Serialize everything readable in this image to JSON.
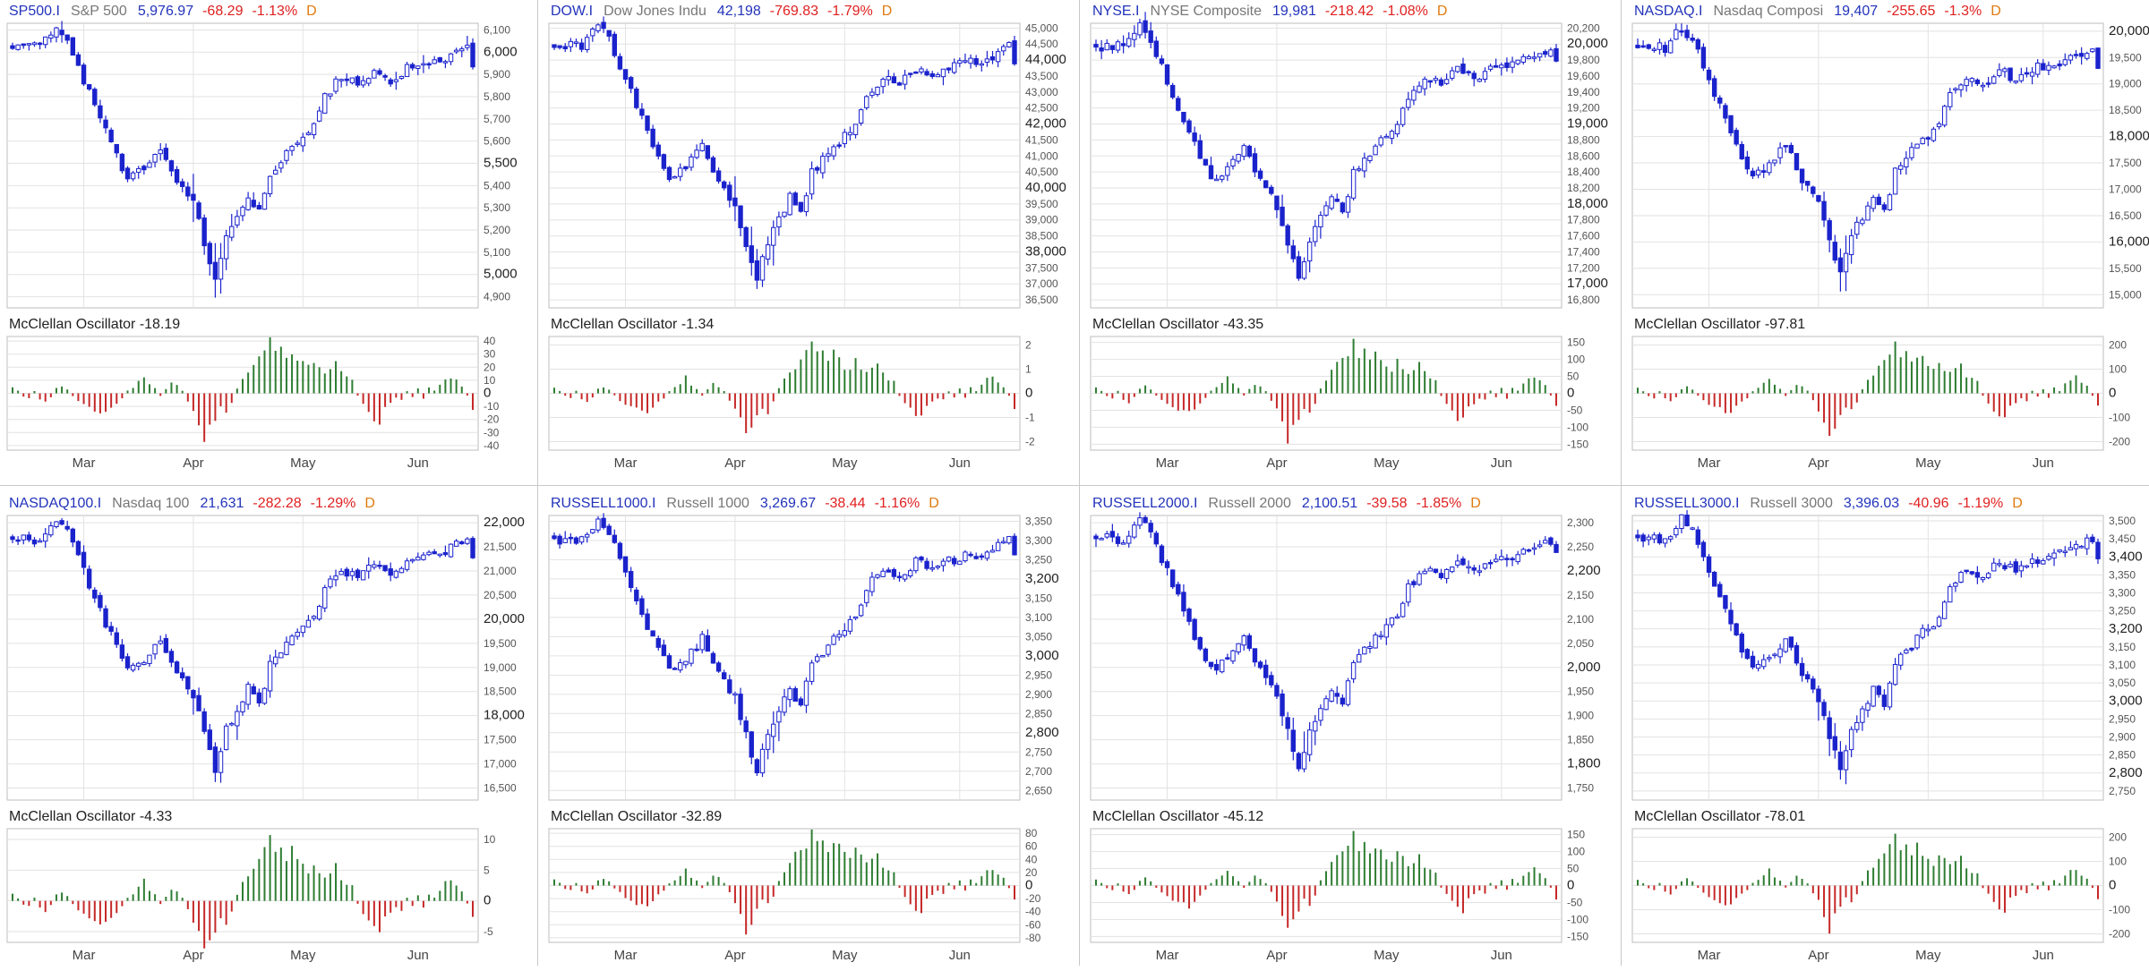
{
  "colors": {
    "symbol": "#2233bb",
    "name": "#777777",
    "last": "#2233bb",
    "change_down": "#e02020",
    "freq": "#e07a10",
    "candle": "#1a22cc",
    "osc_up": "#2e7d32",
    "osc_down": "#c62828",
    "grid": "#e2e2e2",
    "frame": "#bdbdbd",
    "tick_text": "#555555",
    "axis_text": "#444444"
  },
  "panels": [
    {
      "header": {
        "symbol": "SP500.I",
        "name": "S&P 500",
        "last": "5,976.97",
        "change": "-68.29",
        "pct": "-1.13%",
        "freq": "D"
      },
      "osc_label": "McClellan Oscillator -18.19",
      "price_ticks": [
        {
          "v": 6100,
          "t": "6,100",
          "major": false
        },
        {
          "v": 6000,
          "t": "6,000",
          "major": true
        },
        {
          "v": 5900,
          "t": "5,900",
          "major": false
        },
        {
          "v": 5800,
          "t": "5,800",
          "major": false
        },
        {
          "v": 5700,
          "t": "5,700",
          "major": false
        },
        {
          "v": 5600,
          "t": "5,600",
          "major": false
        },
        {
          "v": 5500,
          "t": "5,500",
          "major": true
        },
        {
          "v": 5400,
          "t": "5,400",
          "major": false
        },
        {
          "v": 5300,
          "t": "5,300",
          "major": false
        },
        {
          "v": 5200,
          "t": "5,200",
          "major": false
        },
        {
          "v": 5100,
          "t": "5,100",
          "major": false
        },
        {
          "v": 5000,
          "t": "5,000",
          "major": true
        },
        {
          "v": 4900,
          "t": "4,900",
          "major": false
        }
      ],
      "osc_ticks": [
        {
          "v": 40,
          "t": "40"
        },
        {
          "v": 30,
          "t": "30"
        },
        {
          "v": 20,
          "t": "20"
        },
        {
          "v": 10,
          "t": "10"
        },
        {
          "v": 0,
          "t": "0"
        },
        {
          "v": -10,
          "t": "-10"
        },
        {
          "v": -20,
          "t": "-20"
        },
        {
          "v": -30,
          "t": "-30"
        },
        {
          "v": -40,
          "t": "-40"
        }
      ]
    },
    {
      "header": {
        "symbol": "DOW.I",
        "name": "Dow Jones Indu",
        "last": "42,198",
        "change": "-769.83",
        "pct": "-1.79%",
        "freq": "D"
      },
      "osc_label": "McClellan Oscillator -1.34",
      "price_ticks": [
        {
          "v": 45000,
          "t": "45,000",
          "major": false
        },
        {
          "v": 44500,
          "t": "44,500",
          "major": false
        },
        {
          "v": 44000,
          "t": "44,000",
          "major": true
        },
        {
          "v": 43500,
          "t": "43,500",
          "major": false
        },
        {
          "v": 43000,
          "t": "43,000",
          "major": false
        },
        {
          "v": 42500,
          "t": "42,500",
          "major": false
        },
        {
          "v": 42000,
          "t": "42,000",
          "major": true
        },
        {
          "v": 41500,
          "t": "41,500",
          "major": false
        },
        {
          "v": 41000,
          "t": "41,000",
          "major": false
        },
        {
          "v": 40500,
          "t": "40,500",
          "major": false
        },
        {
          "v": 40000,
          "t": "40,000",
          "major": true
        },
        {
          "v": 39500,
          "t": "39,500",
          "major": false
        },
        {
          "v": 39000,
          "t": "39,000",
          "major": false
        },
        {
          "v": 38500,
          "t": "38,500",
          "major": false
        },
        {
          "v": 38000,
          "t": "38,000",
          "major": true
        },
        {
          "v": 37500,
          "t": "37,500",
          "major": false
        },
        {
          "v": 37000,
          "t": "37,000",
          "major": false
        },
        {
          "v": 36500,
          "t": "36,500",
          "major": false
        }
      ],
      "osc_ticks": [
        {
          "v": 2,
          "t": "2"
        },
        {
          "v": 1,
          "t": "1"
        },
        {
          "v": 0,
          "t": "0"
        },
        {
          "v": -1,
          "t": "-1"
        },
        {
          "v": -2,
          "t": "-2"
        }
      ]
    },
    {
      "header": {
        "symbol": "NYSE.I",
        "name": "NYSE Composite",
        "last": "19,981",
        "change": "-218.42",
        "pct": "-1.08%",
        "freq": "D"
      },
      "osc_label": "McClellan Oscillator -43.35",
      "price_ticks": [
        {
          "v": 20200,
          "t": "20,200",
          "major": false
        },
        {
          "v": 20000,
          "t": "20,000",
          "major": true
        },
        {
          "v": 19800,
          "t": "19,800",
          "major": false
        },
        {
          "v": 19600,
          "t": "19,600",
          "major": false
        },
        {
          "v": 19400,
          "t": "19,400",
          "major": false
        },
        {
          "v": 19200,
          "t": "19,200",
          "major": false
        },
        {
          "v": 19000,
          "t": "19,000",
          "major": true
        },
        {
          "v": 18800,
          "t": "18,800",
          "major": false
        },
        {
          "v": 18600,
          "t": "18,600",
          "major": false
        },
        {
          "v": 18400,
          "t": "18,400",
          "major": false
        },
        {
          "v": 18200,
          "t": "18,200",
          "major": false
        },
        {
          "v": 18000,
          "t": "18,000",
          "major": true
        },
        {
          "v": 17800,
          "t": "17,800",
          "major": false
        },
        {
          "v": 17600,
          "t": "17,600",
          "major": false
        },
        {
          "v": 17400,
          "t": "17,400",
          "major": false
        },
        {
          "v": 17200,
          "t": "17,200",
          "major": false
        },
        {
          "v": 17000,
          "t": "17,000",
          "major": true
        },
        {
          "v": 16800,
          "t": "16,800",
          "major": false
        }
      ],
      "osc_ticks": [
        {
          "v": 150,
          "t": "150"
        },
        {
          "v": 100,
          "t": "100"
        },
        {
          "v": 50,
          "t": "50"
        },
        {
          "v": 0,
          "t": "0"
        },
        {
          "v": -50,
          "t": "-50"
        },
        {
          "v": -100,
          "t": "-100"
        },
        {
          "v": -150,
          "t": "-150"
        }
      ]
    },
    {
      "header": {
        "symbol": "NASDAQ.I",
        "name": "Nasdaq Composi",
        "last": "19,407",
        "change": "-255.65",
        "pct": "-1.3%",
        "freq": "D"
      },
      "osc_label": "McClellan Oscillator -97.81",
      "price_ticks": [
        {
          "v": 20000,
          "t": "20,000",
          "major": true
        },
        {
          "v": 19500,
          "t": "19,500",
          "major": false
        },
        {
          "v": 19000,
          "t": "19,000",
          "major": false
        },
        {
          "v": 18500,
          "t": "18,500",
          "major": false
        },
        {
          "v": 18000,
          "t": "18,000",
          "major": true
        },
        {
          "v": 17500,
          "t": "17,500",
          "major": false
        },
        {
          "v": 17000,
          "t": "17,000",
          "major": false
        },
        {
          "v": 16500,
          "t": "16,500",
          "major": false
        },
        {
          "v": 16000,
          "t": "16,000",
          "major": true
        },
        {
          "v": 15500,
          "t": "15,500",
          "major": false
        },
        {
          "v": 15000,
          "t": "15,000",
          "major": false
        }
      ],
      "osc_ticks": [
        {
          "v": 200,
          "t": "200"
        },
        {
          "v": 100,
          "t": "100"
        },
        {
          "v": 0,
          "t": "0"
        },
        {
          "v": -100,
          "t": "-100"
        },
        {
          "v": -200,
          "t": "-200"
        }
      ]
    },
    {
      "header": {
        "symbol": "NASDAQ100.I",
        "name": "Nasdaq 100",
        "last": "21,631",
        "change": "-282.28",
        "pct": "-1.29%",
        "freq": "D"
      },
      "osc_label": "McClellan Oscillator -4.33",
      "price_ticks": [
        {
          "v": 22000,
          "t": "22,000",
          "major": true
        },
        {
          "v": 21500,
          "t": "21,500",
          "major": false
        },
        {
          "v": 21000,
          "t": "21,000",
          "major": false
        },
        {
          "v": 20500,
          "t": "20,500",
          "major": false
        },
        {
          "v": 20000,
          "t": "20,000",
          "major": true
        },
        {
          "v": 19500,
          "t": "19,500",
          "major": false
        },
        {
          "v": 19000,
          "t": "19,000",
          "major": false
        },
        {
          "v": 18500,
          "t": "18,500",
          "major": false
        },
        {
          "v": 18000,
          "t": "18,000",
          "major": true
        },
        {
          "v": 17500,
          "t": "17,500",
          "major": false
        },
        {
          "v": 17000,
          "t": "17,000",
          "major": false
        },
        {
          "v": 16500,
          "t": "16,500",
          "major": false
        }
      ],
      "osc_ticks": [
        {
          "v": 10,
          "t": "10"
        },
        {
          "v": 5,
          "t": "5"
        },
        {
          "v": 0,
          "t": "0"
        },
        {
          "v": -5,
          "t": "-5"
        }
      ]
    },
    {
      "header": {
        "symbol": "RUSSELL1000.I",
        "name": "Russell 1000",
        "last": "3,269.67",
        "change": "-38.44",
        "pct": "-1.16%",
        "freq": "D"
      },
      "osc_label": "McClellan Oscillator -32.89",
      "price_ticks": [
        {
          "v": 3350,
          "t": "3,350",
          "major": false
        },
        {
          "v": 3300,
          "t": "3,300",
          "major": false
        },
        {
          "v": 3250,
          "t": "3,250",
          "major": false
        },
        {
          "v": 3200,
          "t": "3,200",
          "major": true
        },
        {
          "v": 3150,
          "t": "3,150",
          "major": false
        },
        {
          "v": 3100,
          "t": "3,100",
          "major": false
        },
        {
          "v": 3050,
          "t": "3,050",
          "major": false
        },
        {
          "v": 3000,
          "t": "3,000",
          "major": true
        },
        {
          "v": 2950,
          "t": "2,950",
          "major": false
        },
        {
          "v": 2900,
          "t": "2,900",
          "major": false
        },
        {
          "v": 2850,
          "t": "2,850",
          "major": false
        },
        {
          "v": 2800,
          "t": "2,800",
          "major": true
        },
        {
          "v": 2750,
          "t": "2,750",
          "major": false
        },
        {
          "v": 2700,
          "t": "2,700",
          "major": false
        },
        {
          "v": 2650,
          "t": "2,650",
          "major": false
        }
      ],
      "osc_ticks": [
        {
          "v": 80,
          "t": "80"
        },
        {
          "v": 60,
          "t": "60"
        },
        {
          "v": 40,
          "t": "40"
        },
        {
          "v": 20,
          "t": "20"
        },
        {
          "v": 0,
          "t": "0"
        },
        {
          "v": -20,
          "t": "-20"
        },
        {
          "v": -40,
          "t": "-40"
        },
        {
          "v": -60,
          "t": "-60"
        },
        {
          "v": -80,
          "t": "-80"
        }
      ]
    },
    {
      "header": {
        "symbol": "RUSSELL2000.I",
        "name": "Russell 2000",
        "last": "2,100.51",
        "change": "-39.58",
        "pct": "-1.85%",
        "freq": "D"
      },
      "osc_label": "McClellan Oscillator -45.12",
      "price_ticks": [
        {
          "v": 2300,
          "t": "2,300",
          "major": false
        },
        {
          "v": 2250,
          "t": "2,250",
          "major": false
        },
        {
          "v": 2200,
          "t": "2,200",
          "major": true
        },
        {
          "v": 2150,
          "t": "2,150",
          "major": false
        },
        {
          "v": 2100,
          "t": "2,100",
          "major": false
        },
        {
          "v": 2050,
          "t": "2,050",
          "major": false
        },
        {
          "v": 2000,
          "t": "2,000",
          "major": true
        },
        {
          "v": 1950,
          "t": "1,950",
          "major": false
        },
        {
          "v": 1900,
          "t": "1,900",
          "major": false
        },
        {
          "v": 1850,
          "t": "1,850",
          "major": false
        },
        {
          "v": 1800,
          "t": "1,800",
          "major": true
        },
        {
          "v": 1750,
          "t": "1,750",
          "major": false
        }
      ],
      "osc_ticks": [
        {
          "v": 150,
          "t": "150"
        },
        {
          "v": 100,
          "t": "100"
        },
        {
          "v": 50,
          "t": "50"
        },
        {
          "v": 0,
          "t": "0"
        },
        {
          "v": -50,
          "t": "-50"
        },
        {
          "v": -100,
          "t": "-100"
        },
        {
          "v": -150,
          "t": "-150"
        }
      ]
    },
    {
      "header": {
        "symbol": "RUSSELL3000.I",
        "name": "Russell 3000",
        "last": "3,396.03",
        "change": "-40.96",
        "pct": "-1.19%",
        "freq": "D"
      },
      "osc_label": "McClellan Oscillator -78.01",
      "price_ticks": [
        {
          "v": 3500,
          "t": "3,500",
          "major": false
        },
        {
          "v": 3450,
          "t": "3,450",
          "major": false
        },
        {
          "v": 3400,
          "t": "3,400",
          "major": true
        },
        {
          "v": 3350,
          "t": "3,350",
          "major": false
        },
        {
          "v": 3300,
          "t": "3,300",
          "major": false
        },
        {
          "v": 3250,
          "t": "3,250",
          "major": false
        },
        {
          "v": 3200,
          "t": "3,200",
          "major": true
        },
        {
          "v": 3150,
          "t": "3,150",
          "major": false
        },
        {
          "v": 3100,
          "t": "3,100",
          "major": false
        },
        {
          "v": 3050,
          "t": "3,050",
          "major": false
        },
        {
          "v": 3000,
          "t": "3,000",
          "major": true
        },
        {
          "v": 2950,
          "t": "2,950",
          "major": false
        },
        {
          "v": 2900,
          "t": "2,900",
          "major": false
        },
        {
          "v": 2850,
          "t": "2,850",
          "major": false
        },
        {
          "v": 2800,
          "t": "2,800",
          "major": true
        },
        {
          "v": 2750,
          "t": "2,750",
          "major": false
        }
      ],
      "osc_ticks": [
        {
          "v": 200,
          "t": "200"
        },
        {
          "v": 100,
          "t": "100"
        },
        {
          "v": 0,
          "t": "0"
        },
        {
          "v": -100,
          "t": "-100"
        },
        {
          "v": -200,
          "t": "-200"
        }
      ]
    }
  ],
  "chart_data": {
    "type": "candlestick",
    "months": [
      {
        "label": "Mar",
        "index": 13
      },
      {
        "label": "Apr",
        "index": 33
      },
      {
        "label": "May",
        "index": 53
      },
      {
        "label": "Jun",
        "index": 74
      }
    ],
    "bars_count": 85,
    "shape_anchors": [
      {
        "i": 0,
        "r": 0.91
      },
      {
        "i": 2,
        "r": 0.93
      },
      {
        "i": 5,
        "r": 0.92
      },
      {
        "i": 8,
        "r": 1.0
      },
      {
        "i": 10,
        "r": 0.95
      },
      {
        "i": 13,
        "r": 0.8
      },
      {
        "i": 17,
        "r": 0.6
      },
      {
        "i": 21,
        "r": 0.43
      },
      {
        "i": 24,
        "r": 0.47
      },
      {
        "i": 27,
        "r": 0.55
      },
      {
        "i": 30,
        "r": 0.42
      },
      {
        "i": 33,
        "r": 0.33
      },
      {
        "i": 36,
        "r": 0.12
      },
      {
        "i": 37,
        "r": 0.05
      },
      {
        "i": 39,
        "r": 0.2
      },
      {
        "i": 41,
        "r": 0.28
      },
      {
        "i": 43,
        "r": 0.36
      },
      {
        "i": 45,
        "r": 0.3
      },
      {
        "i": 47,
        "r": 0.45
      },
      {
        "i": 51,
        "r": 0.55
      },
      {
        "i": 55,
        "r": 0.63
      },
      {
        "i": 57,
        "r": 0.74
      },
      {
        "i": 60,
        "r": 0.81
      },
      {
        "i": 63,
        "r": 0.78
      },
      {
        "i": 66,
        "r": 0.84
      },
      {
        "i": 69,
        "r": 0.8
      },
      {
        "i": 72,
        "r": 0.84
      },
      {
        "i": 75,
        "r": 0.86
      },
      {
        "i": 78,
        "r": 0.87
      },
      {
        "i": 81,
        "r": 0.9
      },
      {
        "i": 83,
        "r": 0.92
      },
      {
        "i": 84,
        "r": 0.86
      }
    ],
    "oscillator_shape": [
      0.12,
      0.05,
      -0.06,
      -0.1,
      0.05,
      -0.12,
      -0.18,
      -0.08,
      0.1,
      0.15,
      0.08,
      -0.05,
      -0.15,
      -0.22,
      -0.28,
      -0.35,
      -0.38,
      -0.42,
      -0.3,
      -0.2,
      -0.1,
      0.05,
      0.12,
      0.22,
      0.35,
      0.18,
      0.1,
      -0.05,
      0.08,
      0.2,
      0.15,
      0.05,
      -0.15,
      -0.35,
      -0.6,
      -0.95,
      -0.7,
      -0.5,
      -0.3,
      -0.4,
      -0.2,
      0.1,
      0.3,
      0.45,
      0.6,
      0.75,
      0.85,
      1.0,
      0.8,
      0.9,
      0.7,
      0.85,
      0.75,
      0.6,
      0.5,
      0.7,
      0.55,
      0.45,
      0.5,
      0.6,
      0.4,
      0.3,
      0.25,
      -0.05,
      -0.2,
      -0.35,
      -0.5,
      -0.55,
      -0.3,
      -0.2,
      -0.1,
      -0.15,
      0.05,
      -0.08,
      0.1,
      -0.1,
      0.12,
      0.05,
      0.2,
      0.3,
      0.35,
      0.25,
      0.15,
      -0.05,
      -0.3
    ]
  }
}
